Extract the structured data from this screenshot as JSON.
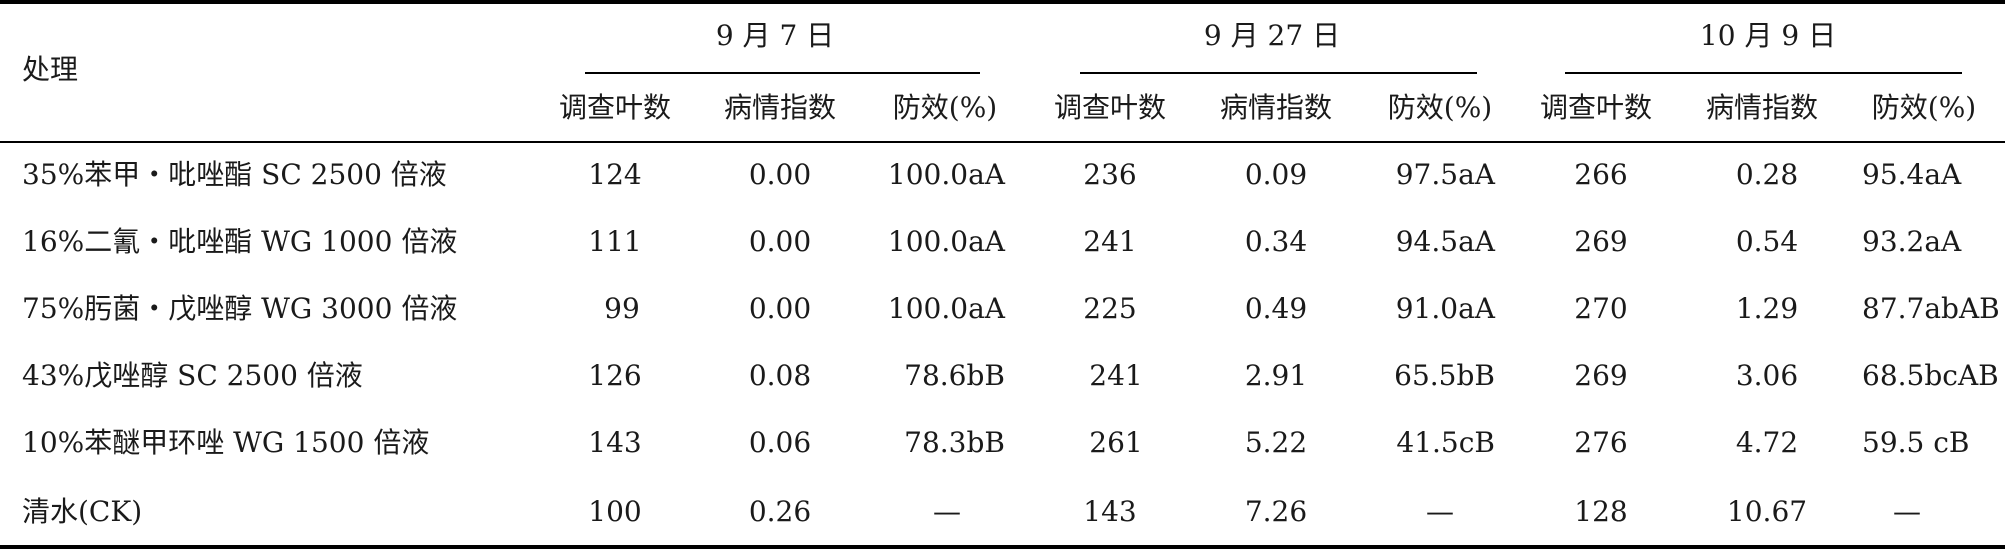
{
  "header": {
    "treatment_label": "处理",
    "dates": [
      "9 月 7 日",
      "9 月 27 日",
      "10 月 9 日"
    ],
    "sub_columns": [
      "调查叶数",
      "病情指数",
      "防效(%)"
    ]
  },
  "rows": [
    {
      "treatment": "35%苯甲・吡唑酯 SC 2500 倍液",
      "d1": {
        "leaves": "124",
        "index": "0.00",
        "efficacy": "100.0aA"
      },
      "d2": {
        "leaves": "236",
        "index": "0.09",
        "efficacy": "97.5aA"
      },
      "d3": {
        "leaves": "266",
        "index": "0.28",
        "efficacy": "95.4aA"
      }
    },
    {
      "treatment": "16%二氰・吡唑酯 WG 1000 倍液",
      "d1": {
        "leaves": "111",
        "index": "0.00",
        "efficacy": "100.0aA"
      },
      "d2": {
        "leaves": "241",
        "index": "0.34",
        "efficacy": "94.5aA"
      },
      "d3": {
        "leaves": "269",
        "index": "0.54",
        "efficacy": "93.2aA"
      }
    },
    {
      "treatment": "75%肟菌・戊唑醇 WG 3000 倍液",
      "d1": {
        "leaves": "99",
        "index": "0.00",
        "efficacy": "100.0aA"
      },
      "d2": {
        "leaves": "225",
        "index": "0.49",
        "efficacy": "91.0aA"
      },
      "d3": {
        "leaves": "270",
        "index": "1.29",
        "efficacy": "87.7abAB"
      }
    },
    {
      "treatment": "43%戊唑醇 SC 2500 倍液",
      "d1": {
        "leaves": "126",
        "index": "0.08",
        "efficacy": "78.6bB"
      },
      "d2": {
        "leaves": "241",
        "index": "2.91",
        "efficacy": "65.5bB"
      },
      "d3": {
        "leaves": "269",
        "index": "3.06",
        "efficacy": "68.5bcAB"
      }
    },
    {
      "treatment": "10%苯醚甲环唑 WG 1500 倍液",
      "d1": {
        "leaves": "143",
        "index": "0.06",
        "efficacy": "78.3bB"
      },
      "d2": {
        "leaves": "261",
        "index": "5.22",
        "efficacy": "41.5cB"
      },
      "d3": {
        "leaves": "276",
        "index": "4.72",
        "efficacy": "59.5 cB"
      }
    },
    {
      "treatment": "清水(CK)",
      "d1": {
        "leaves": "100",
        "index": "0.26",
        "efficacy": "—"
      },
      "d2": {
        "leaves": "143",
        "index": "7.26",
        "efficacy": "—"
      },
      "d3": {
        "leaves": "128",
        "index": "10.67",
        "efficacy": "—"
      }
    }
  ]
}
